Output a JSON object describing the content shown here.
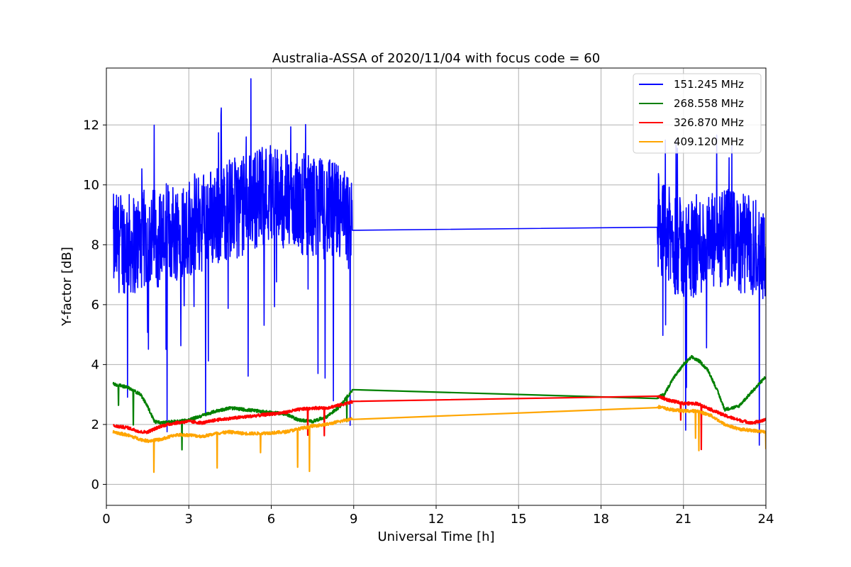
{
  "chart_data": {
    "type": "line",
    "title": "Australia-ASSA of 2020/11/04 with focus code = 60",
    "xlabel": "Universal Time [h]",
    "ylabel": "Y-factor [dB]",
    "xlim": [
      0,
      24
    ],
    "ylim": [
      -0.7,
      13.9
    ],
    "xticks": [
      0,
      3,
      6,
      9,
      12,
      15,
      18,
      21,
      24
    ],
    "yticks": [
      0,
      2,
      4,
      6,
      8,
      10,
      12
    ],
    "grid": true,
    "legend_position": "top-right",
    "series": [
      {
        "name": "151.245 MHz",
        "color": "#0000ff",
        "noise": 1.7,
        "x": [
          0.25,
          0.5,
          1.0,
          1.5,
          2.0,
          2.5,
          3.0,
          3.5,
          4.0,
          4.5,
          5.0,
          5.5,
          6.0,
          6.5,
          7.0,
          7.5,
          8.0,
          8.5,
          8.95,
          20.05,
          20.5,
          21.0,
          21.5,
          22.0,
          22.5,
          23.0,
          23.5,
          24.0
        ],
        "y": [
          8.0,
          8.1,
          8.0,
          8.2,
          8.3,
          8.5,
          8.6,
          8.8,
          9.0,
          9.2,
          9.3,
          9.6,
          9.8,
          9.5,
          9.4,
          9.3,
          9.2,
          9.0,
          8.5,
          8.75,
          8.2,
          7.8,
          8.0,
          8.0,
          8.2,
          8.0,
          8.0,
          7.8
        ]
      },
      {
        "name": "268.558 MHz",
        "color": "#008000",
        "noise": 0.05,
        "x": [
          0.25,
          0.75,
          1.25,
          1.5,
          1.75,
          2.0,
          2.5,
          3.0,
          3.5,
          4.0,
          4.5,
          5.0,
          5.5,
          6.0,
          6.5,
          7.0,
          7.5,
          8.0,
          8.5,
          8.95,
          20.05,
          20.3,
          20.6,
          21.0,
          21.3,
          21.6,
          21.9,
          22.2,
          22.5,
          23.0,
          23.5,
          24.0
        ],
        "y": [
          3.35,
          3.25,
          3.0,
          2.6,
          2.1,
          2.05,
          2.1,
          2.15,
          2.3,
          2.45,
          2.55,
          2.5,
          2.45,
          2.4,
          2.35,
          2.15,
          2.1,
          2.25,
          2.6,
          3.15,
          2.9,
          3.0,
          3.5,
          4.0,
          4.25,
          4.1,
          3.8,
          3.2,
          2.5,
          2.6,
          3.1,
          3.6
        ]
      },
      {
        "name": "326.870 MHz",
        "color": "#ff0000",
        "noise": 0.05,
        "x": [
          0.25,
          0.75,
          1.25,
          1.5,
          2.0,
          2.5,
          3.0,
          3.5,
          4.0,
          4.5,
          5.0,
          5.5,
          6.0,
          6.5,
          7.0,
          7.5,
          8.0,
          8.5,
          8.95,
          20.05,
          20.5,
          21.0,
          21.5,
          22.0,
          22.5,
          23.0,
          23.5,
          24.0
        ],
        "y": [
          1.95,
          1.9,
          1.75,
          1.75,
          1.95,
          2.05,
          2.1,
          2.05,
          2.15,
          2.2,
          2.25,
          2.3,
          2.35,
          2.4,
          2.5,
          2.55,
          2.55,
          2.65,
          2.75,
          2.95,
          2.8,
          2.7,
          2.7,
          2.5,
          2.3,
          2.15,
          2.05,
          2.15
        ]
      },
      {
        "name": "409.120 MHz",
        "color": "#ffa500",
        "noise": 0.05,
        "x": [
          0.25,
          0.75,
          1.25,
          1.5,
          2.0,
          2.5,
          3.0,
          3.5,
          4.0,
          4.5,
          5.0,
          5.5,
          6.0,
          6.5,
          7.0,
          7.5,
          8.0,
          8.5,
          8.95,
          20.05,
          20.5,
          21.0,
          21.5,
          22.0,
          22.5,
          23.0,
          23.5,
          24.0
        ],
        "y": [
          1.75,
          1.65,
          1.5,
          1.45,
          1.5,
          1.65,
          1.65,
          1.6,
          1.7,
          1.75,
          1.7,
          1.7,
          1.72,
          1.75,
          1.85,
          1.95,
          2.0,
          2.1,
          2.2,
          2.6,
          2.5,
          2.45,
          2.45,
          2.3,
          2.0,
          1.85,
          1.8,
          1.75
        ]
      }
    ]
  }
}
